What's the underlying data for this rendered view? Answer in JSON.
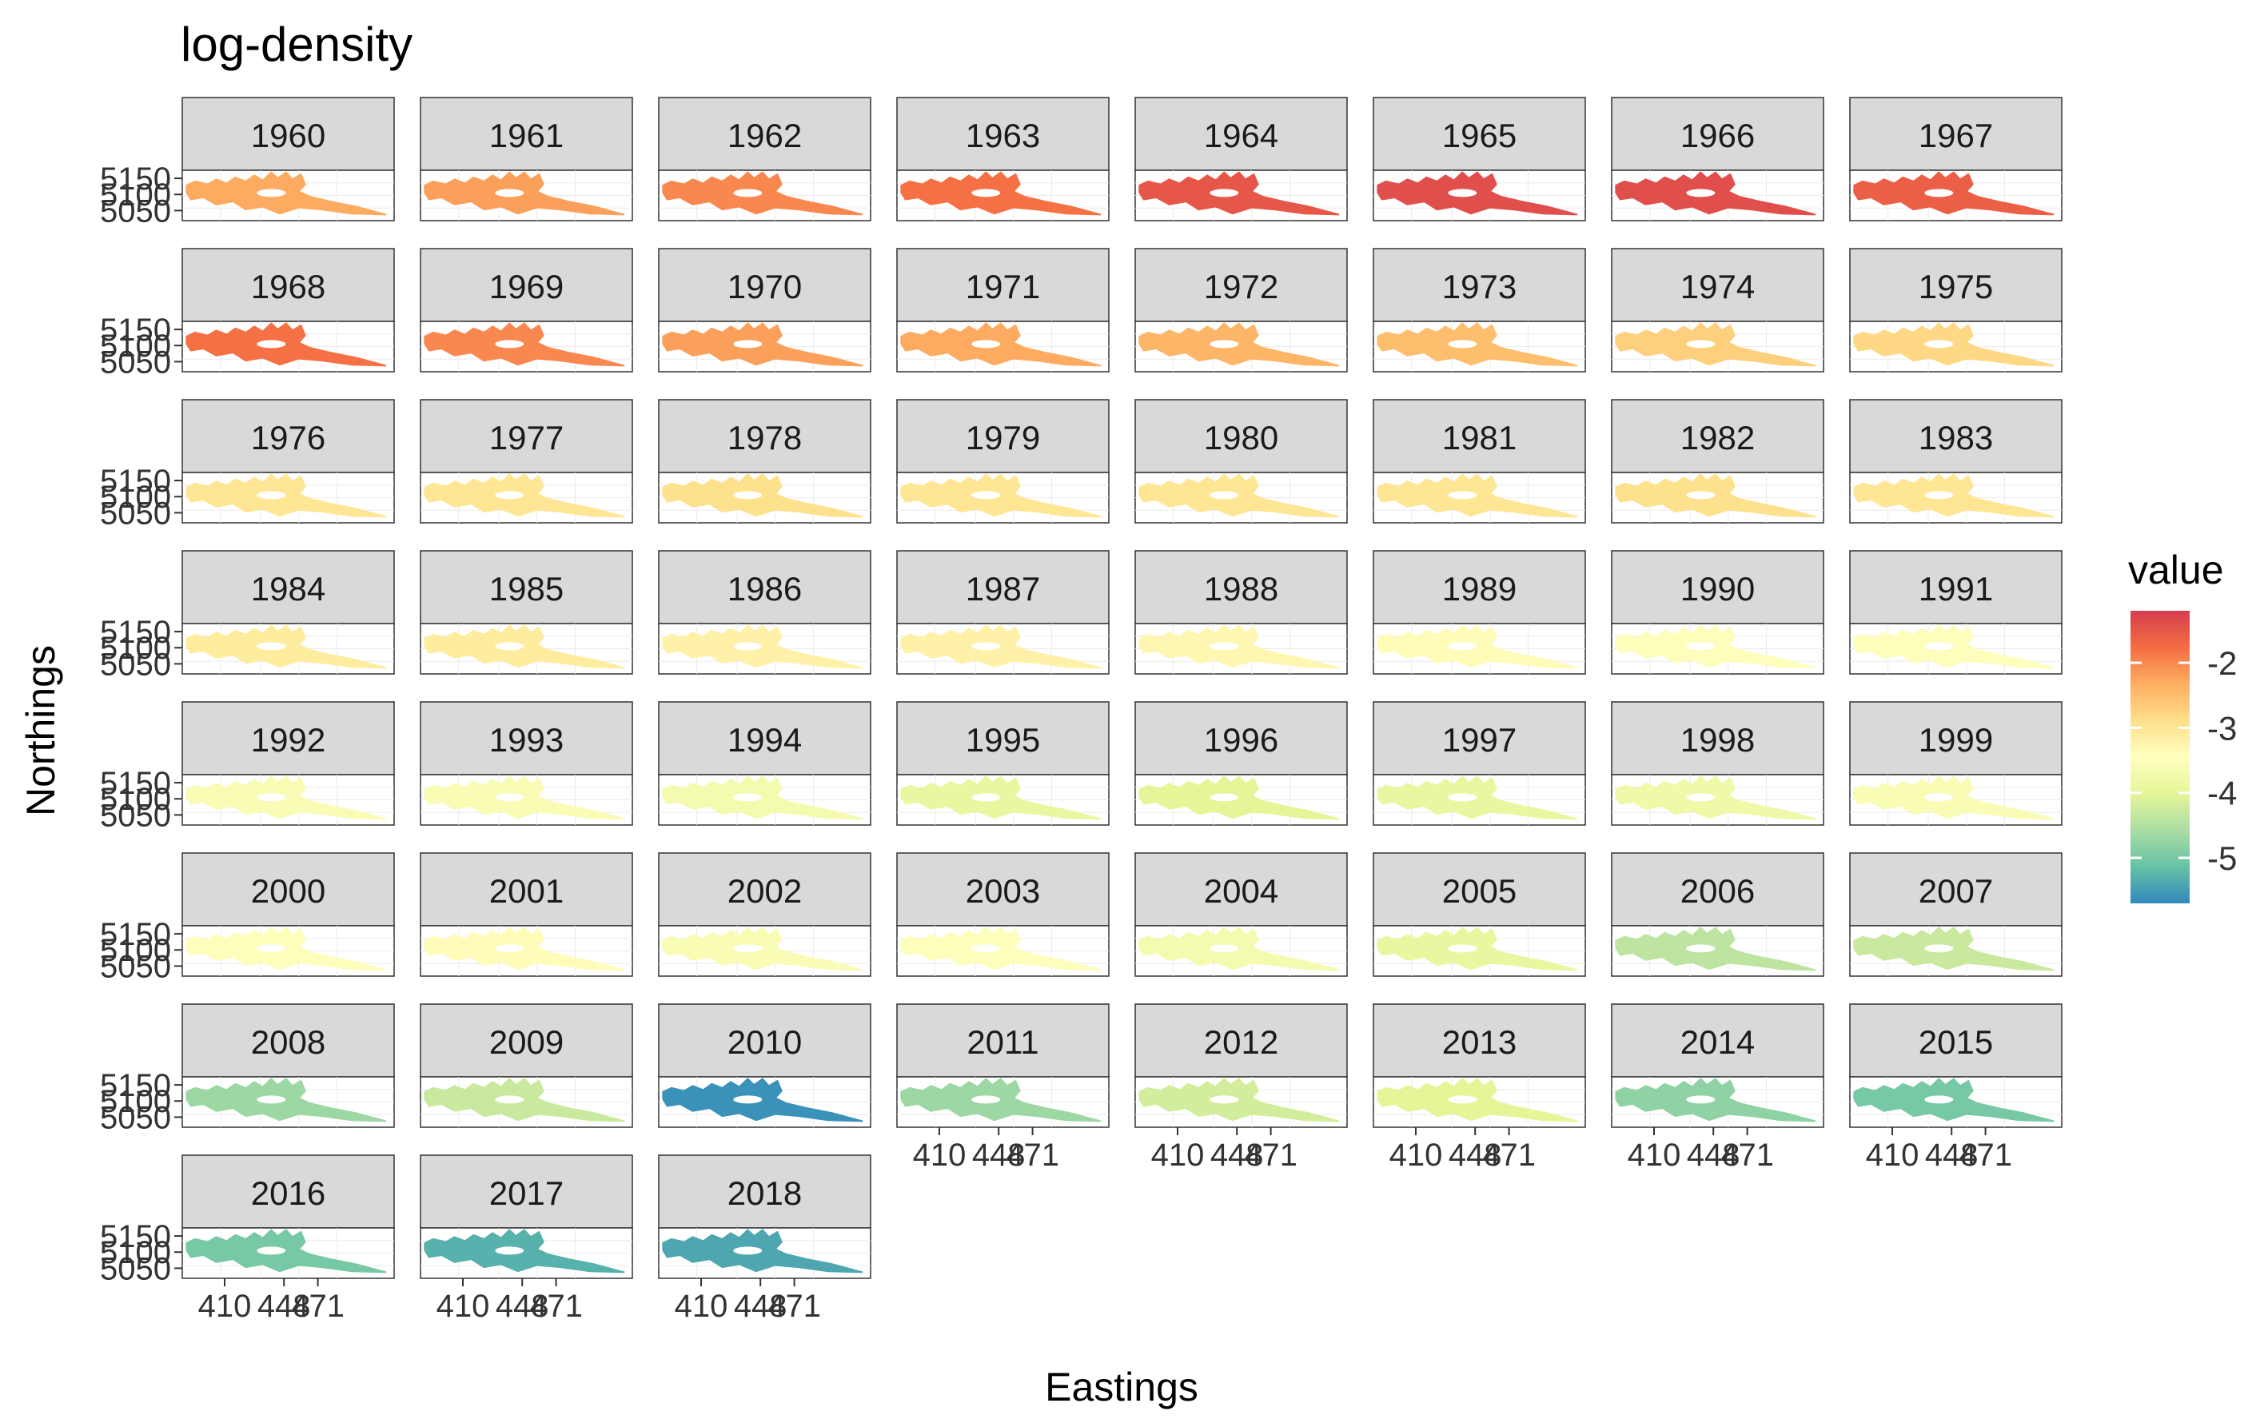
{
  "chart_data": {
    "type": "heatmap",
    "title": "log-density",
    "xlabel": "Eastings",
    "ylabel": "Northings",
    "x_ticks": [
      "410",
      "448",
      "471"
    ],
    "y_ticks": [
      "5050",
      "5100",
      "5150"
    ],
    "legend": {
      "title": "value",
      "placement": "right",
      "ticks": [
        -2,
        -3,
        -4,
        -5
      ],
      "range": [
        -5.7,
        -1.2
      ],
      "palette": [
        "#3288bd",
        "#66c2a5",
        "#abdda4",
        "#e6f598",
        "#ffffbf",
        "#fee08b",
        "#fdae61",
        "#f46d43",
        "#d53e4f"
      ]
    },
    "facets": [
      {
        "year": "1960",
        "value": -2.3
      },
      {
        "year": "1961",
        "value": -2.2
      },
      {
        "year": "1962",
        "value": -2.0
      },
      {
        "year": "1963",
        "value": -1.8
      },
      {
        "year": "1964",
        "value": -1.5
      },
      {
        "year": "1965",
        "value": -1.4
      },
      {
        "year": "1966",
        "value": -1.4
      },
      {
        "year": "1967",
        "value": -1.6
      },
      {
        "year": "1968",
        "value": -1.8
      },
      {
        "year": "1969",
        "value": -2.0
      },
      {
        "year": "1970",
        "value": -2.2
      },
      {
        "year": "1971",
        "value": -2.3
      },
      {
        "year": "1972",
        "value": -2.4
      },
      {
        "year": "1973",
        "value": -2.5
      },
      {
        "year": "1974",
        "value": -2.7
      },
      {
        "year": "1975",
        "value": -2.8
      },
      {
        "year": "1976",
        "value": -3.0
      },
      {
        "year": "1977",
        "value": -3.0
      },
      {
        "year": "1978",
        "value": -2.9
      },
      {
        "year": "1979",
        "value": -3.0
      },
      {
        "year": "1980",
        "value": -3.0
      },
      {
        "year": "1981",
        "value": -3.0
      },
      {
        "year": "1982",
        "value": -2.9
      },
      {
        "year": "1983",
        "value": -3.0
      },
      {
        "year": "1984",
        "value": -3.1
      },
      {
        "year": "1985",
        "value": -3.1
      },
      {
        "year": "1986",
        "value": -3.2
      },
      {
        "year": "1987",
        "value": -3.2
      },
      {
        "year": "1988",
        "value": -3.3
      },
      {
        "year": "1989",
        "value": -3.4
      },
      {
        "year": "1990",
        "value": -3.5
      },
      {
        "year": "1991",
        "value": -3.5
      },
      {
        "year": "1992",
        "value": -3.6
      },
      {
        "year": "1993",
        "value": -3.6
      },
      {
        "year": "1994",
        "value": -3.7
      },
      {
        "year": "1995",
        "value": -3.9
      },
      {
        "year": "1996",
        "value": -4.0
      },
      {
        "year": "1997",
        "value": -3.9
      },
      {
        "year": "1998",
        "value": -3.8
      },
      {
        "year": "1999",
        "value": -3.6
      },
      {
        "year": "2000",
        "value": -3.5
      },
      {
        "year": "2001",
        "value": -3.4
      },
      {
        "year": "2002",
        "value": -3.6
      },
      {
        "year": "2003",
        "value": -3.5
      },
      {
        "year": "2004",
        "value": -3.7
      },
      {
        "year": "2005",
        "value": -3.9
      },
      {
        "year": "2006",
        "value": -4.4
      },
      {
        "year": "2007",
        "value": -4.3
      },
      {
        "year": "2008",
        "value": -4.7
      },
      {
        "year": "2009",
        "value": -4.3
      },
      {
        "year": "2010",
        "value": -5.6
      },
      {
        "year": "2011",
        "value": -4.7
      },
      {
        "year": "2012",
        "value": -4.2
      },
      {
        "year": "2013",
        "value": -4.0
      },
      {
        "year": "2014",
        "value": -4.8
      },
      {
        "year": "2015",
        "value": -5.0
      },
      {
        "year": "2016",
        "value": -5.0
      },
      {
        "year": "2017",
        "value": -5.3
      },
      {
        "year": "2018",
        "value": -5.4
      }
    ]
  }
}
